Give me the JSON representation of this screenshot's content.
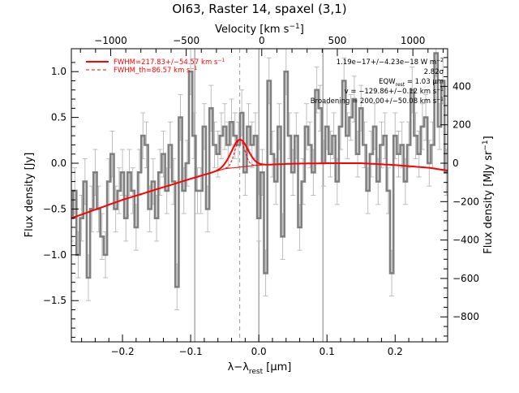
{
  "chart_data": {
    "type": "line",
    "title": "OI63, Raster 14, spaxel (3,1)",
    "xlabel": "λ−λ",
    "xlabel_sub": "rest",
    "xlabel_unit": " [μm]",
    "ylabel": "Flux density [Jy]",
    "ylabel_right": "Flux density [MJy sr",
    "ylabel_right_sup": "−1",
    "ylabel_right_close": "]",
    "xlabel_top": "Velocity [km s",
    "xlabel_top_sup": "−1",
    "xlabel_top_close": "]",
    "xlim": [
      -0.275,
      0.277
    ],
    "ylim": [
      -1.95,
      1.25
    ],
    "ylim_right": [
      -930,
      596
    ],
    "vlim_top": [
      -1260,
      1230
    ],
    "x_ticks": [
      -0.2,
      -0.1,
      0.0,
      0.1,
      0.2
    ],
    "x_tick_labels": [
      "−0.2",
      "−0.1",
      "0.0",
      "0.1",
      "0.2"
    ],
    "y_ticks": [
      -1.5,
      -1.0,
      -0.5,
      0.0,
      0.5,
      1.0
    ],
    "y_tick_labels": [
      "−1.5",
      "−1.0",
      "−0.5",
      "0.0",
      "0.5",
      "1.0"
    ],
    "y_right_ticks": [
      -800,
      -600,
      -400,
      -200,
      0,
      200,
      400
    ],
    "y_right_tick_labels": [
      "−800",
      "−600",
      "−400",
      "−200",
      "0",
      "200",
      "400"
    ],
    "v_ticks": [
      -1000,
      -500,
      0,
      500,
      1000
    ],
    "v_tick_labels": [
      "−1000",
      "−500",
      "0",
      "500",
      "1000"
    ],
    "vertical_lines": [
      -0.094,
      0.0,
      0.094
    ],
    "center_dashed": -0.028,
    "series": [
      {
        "name": "data",
        "color": "#808080",
        "x": [
          -0.275,
          -0.27,
          -0.265,
          -0.26,
          -0.255,
          -0.25,
          -0.245,
          -0.24,
          -0.235,
          -0.23,
          -0.225,
          -0.22,
          -0.215,
          -0.21,
          -0.205,
          -0.2,
          -0.195,
          -0.19,
          -0.185,
          -0.18,
          -0.175,
          -0.17,
          -0.165,
          -0.16,
          -0.155,
          -0.15,
          -0.145,
          -0.14,
          -0.135,
          -0.13,
          -0.125,
          -0.12,
          -0.115,
          -0.11,
          -0.105,
          -0.1,
          -0.095,
          -0.09,
          -0.085,
          -0.08,
          -0.075,
          -0.07,
          -0.065,
          -0.06,
          -0.055,
          -0.05,
          -0.045,
          -0.04,
          -0.035,
          -0.03,
          -0.025,
          -0.02,
          -0.015,
          -0.01,
          -0.005,
          0.0,
          0.005,
          0.01,
          0.015,
          0.02,
          0.025,
          0.03,
          0.035,
          0.04,
          0.045,
          0.05,
          0.055,
          0.06,
          0.065,
          0.07,
          0.075,
          0.08,
          0.085,
          0.09,
          0.095,
          0.1,
          0.105,
          0.11,
          0.115,
          0.12,
          0.125,
          0.13,
          0.135,
          0.14,
          0.145,
          0.15,
          0.155,
          0.16,
          0.165,
          0.17,
          0.175,
          0.18,
          0.185,
          0.19,
          0.195,
          0.2,
          0.205,
          0.21,
          0.215,
          0.22,
          0.225,
          0.23,
          0.235,
          0.24,
          0.245,
          0.25,
          0.255,
          0.26,
          0.265,
          0.27,
          0.275
        ],
        "y": [
          -0.6,
          -0.3,
          -1.0,
          -0.6,
          -0.2,
          -1.25,
          -0.5,
          -0.1,
          -0.5,
          -0.8,
          -1.0,
          -0.2,
          0.1,
          -0.5,
          -0.3,
          -0.1,
          -0.6,
          -0.1,
          -0.3,
          -0.7,
          -0.1,
          0.3,
          0.2,
          -0.5,
          -0.2,
          -0.6,
          -0.1,
          0.1,
          -0.3,
          0.2,
          -0.2,
          -1.35,
          0.5,
          -0.3,
          0.0,
          1.0,
          0.3,
          -0.3,
          -0.3,
          0.4,
          -0.5,
          0.6,
          0.2,
          0.1,
          0.3,
          0.4,
          0.2,
          0.45,
          0.3,
          0.2,
          0.55,
          -0.1,
          0.4,
          0.2,
          0.3,
          -0.6,
          -0.1,
          -1.2,
          0.9,
          0.1,
          -0.2,
          0.4,
          -0.8,
          1.0,
          0.3,
          -0.1,
          0.3,
          -0.7,
          -0.2,
          0.4,
          0.2,
          -0.1,
          0.8,
          0.6,
          0.0,
          0.4,
          0.1,
          0.3,
          -0.2,
          0.4,
          0.9,
          0.3,
          0.5,
          0.7,
          0.1,
          0.6,
          0.2,
          -0.3,
          0.1,
          0.4,
          -0.2,
          0.2,
          0.3,
          -0.3,
          -1.2,
          0.3,
          0.1,
          0.2,
          -0.2,
          0.2,
          0.8,
          0.3,
          0.1,
          0.4,
          0.5,
          0.0,
          0.2,
          1.2,
          0.4,
          0.9,
          -0.1
        ],
        "yerr": 0.25
      },
      {
        "name": "fit",
        "color": "#ff0000",
        "baseline": {
          "a": -0.6,
          "b": 0.003,
          "c": 0.0,
          "curve": [
            [
              -0.275,
              -0.6
            ],
            [
              -0.2,
              -0.4
            ],
            [
              -0.1,
              -0.17
            ],
            [
              -0.05,
              -0.06
            ],
            [
              0.0,
              -0.02
            ],
            [
              0.05,
              -0.005
            ],
            [
              0.1,
              0.0
            ],
            [
              0.15,
              0.0
            ],
            [
              0.2,
              -0.02
            ],
            [
              0.25,
              -0.05
            ],
            [
              0.277,
              -0.08
            ]
          ]
        },
        "gaussian": {
          "center": -0.028,
          "amplitude": 0.3,
          "sigma": 0.012
        }
      }
    ],
    "legend": [
      {
        "label": "FWHM=217.83+/−54.57 km s",
        "sup": "−1",
        "style": "solid",
        "color": "#ff0000"
      },
      {
        "label": "FWHM_th=86.57 km s",
        "sup": "−1",
        "style": "dashed",
        "color": "#ff0000"
      }
    ],
    "legend_position": "top-left",
    "annotations": [
      {
        "text": "1.19e−17+/−4.23e−18 W m",
        "sup": "−2"
      },
      {
        "text": "2.82σ"
      },
      {
        "text": "EQW",
        "sub": "rest",
        "text2": " = 1.03 μm"
      },
      {
        "text": "v = −129.86+/−0.12 km s",
        "sup": "−1"
      },
      {
        "text": "Broadening = 200.00+/−50.08 km s",
        "sup": "−1"
      }
    ],
    "annotation_position": "top-right",
    "grid": false
  }
}
